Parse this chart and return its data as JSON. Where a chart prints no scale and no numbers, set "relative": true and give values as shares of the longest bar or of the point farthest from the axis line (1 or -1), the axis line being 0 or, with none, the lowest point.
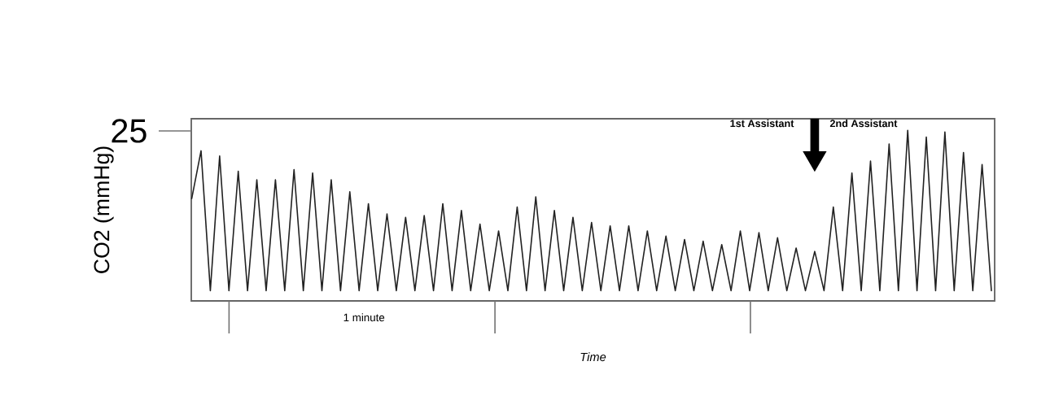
{
  "chart_data": {
    "type": "line",
    "relative": true,
    "xlabel": "Time",
    "ylabel": "CO2 (mmHg)",
    "color": "#222222",
    "categories": [
      null,
      null,
      null,
      null,
      null,
      null,
      null,
      null,
      null,
      null,
      null,
      null,
      null,
      null,
      null,
      null,
      null,
      null,
      null,
      null,
      null,
      null,
      null,
      null,
      null,
      null,
      null,
      null,
      null,
      null,
      null,
      null,
      null,
      null,
      null,
      null,
      null,
      null,
      null,
      null,
      null,
      null,
      null,
      null,
      null,
      null,
      null,
      null,
      null,
      null,
      null,
      null,
      null,
      null,
      null,
      null,
      null,
      null,
      null,
      null,
      null,
      null,
      null,
      null,
      null,
      null,
      null,
      null,
      null,
      null,
      null,
      null,
      null,
      null,
      null,
      null,
      null,
      null,
      null,
      null,
      null,
      null,
      null,
      null,
      null,
      null,
      null
    ],
    "values": [
      0.6,
      0.88,
      0.06,
      0.85,
      0.06,
      0.76,
      0.06,
      0.71,
      0.06,
      0.71,
      0.06,
      0.77,
      0.06,
      0.75,
      0.06,
      0.71,
      0.06,
      0.64,
      0.06,
      0.57,
      0.06,
      0.51,
      0.06,
      0.49,
      0.06,
      0.5,
      0.06,
      0.57,
      0.06,
      0.53,
      0.06,
      0.45,
      0.06,
      0.41,
      0.06,
      0.55,
      0.06,
      0.61,
      0.06,
      0.53,
      0.06,
      0.49,
      0.06,
      0.46,
      0.06,
      0.44,
      0.06,
      0.44,
      0.06,
      0.41,
      0.06,
      0.38,
      0.06,
      0.36,
      0.06,
      0.35,
      0.06,
      0.33,
      0.06,
      0.41,
      0.06,
      0.4,
      0.06,
      0.37,
      0.06,
      0.31,
      0.06,
      0.29,
      0.06,
      0.55,
      0.06,
      0.75,
      0.06,
      0.82,
      0.06,
      0.92,
      0.06,
      1,
      0.06,
      0.96,
      0.06,
      0.99,
      0.06,
      0.87,
      0.06,
      0.8,
      0.06
    ],
    "annotations": [
      "1st Assistant",
      "2nd Assistant",
      "1 minute",
      "25"
    ]
  }
}
